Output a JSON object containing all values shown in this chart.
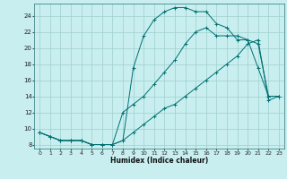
{
  "xlabel": "Humidex (Indice chaleur)",
  "bg_color": "#c8eef0",
  "grid_color": "#9ecfcc",
  "line_color": "#007070",
  "xlim": [
    -0.5,
    23.5
  ],
  "ylim": [
    7.5,
    25.5
  ],
  "xticks": [
    0,
    1,
    2,
    3,
    4,
    5,
    6,
    7,
    8,
    9,
    10,
    11,
    12,
    13,
    14,
    15,
    16,
    17,
    18,
    19,
    20,
    21,
    22,
    23
  ],
  "yticks": [
    8,
    10,
    12,
    14,
    16,
    18,
    20,
    22,
    24
  ],
  "line1_x": [
    0,
    1,
    2,
    3,
    4,
    5,
    6,
    7,
    8,
    9,
    10,
    11,
    12,
    13,
    14,
    15,
    16,
    17,
    18,
    19,
    20,
    21,
    22,
    23
  ],
  "line1_y": [
    9.5,
    9.0,
    8.5,
    8.5,
    8.5,
    8.0,
    8.0,
    8.0,
    8.5,
    9.5,
    10.5,
    11.5,
    12.5,
    13.0,
    14.0,
    15.0,
    16.0,
    17.0,
    18.0,
    19.0,
    20.5,
    21.0,
    13.5,
    14.0
  ],
  "line2_x": [
    0,
    1,
    2,
    3,
    4,
    5,
    6,
    7,
    8,
    9,
    10,
    11,
    12,
    13,
    14,
    15,
    16,
    17,
    18,
    19,
    20,
    21,
    22,
    23
  ],
  "line2_y": [
    9.5,
    9.0,
    8.5,
    8.5,
    8.5,
    8.0,
    8.0,
    8.0,
    8.5,
    17.5,
    21.5,
    23.5,
    24.5,
    25.0,
    25.0,
    24.5,
    24.5,
    23.0,
    22.5,
    21.0,
    21.0,
    17.5,
    14.0,
    14.0
  ],
  "line3_x": [
    0,
    1,
    2,
    3,
    4,
    5,
    6,
    7,
    8,
    9,
    10,
    11,
    12,
    13,
    14,
    15,
    16,
    17,
    18,
    19,
    20,
    21,
    22,
    23
  ],
  "line3_y": [
    9.5,
    9.0,
    8.5,
    8.5,
    8.5,
    8.0,
    8.0,
    8.0,
    12.0,
    13.0,
    14.0,
    15.5,
    17.0,
    18.5,
    20.5,
    22.0,
    22.5,
    21.5,
    21.5,
    21.5,
    21.0,
    20.5,
    14.0,
    14.0
  ]
}
